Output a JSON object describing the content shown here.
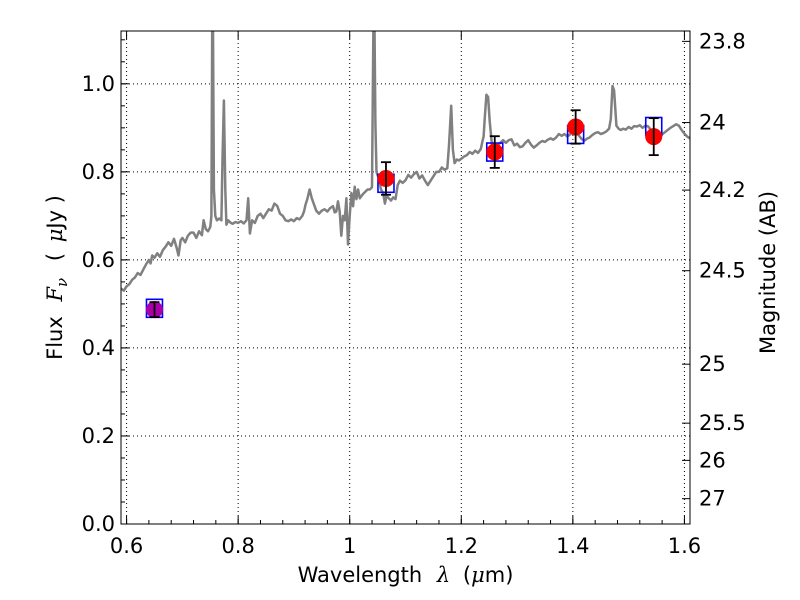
{
  "chart_data": {
    "type": "scatter",
    "xlabel_text": "Wavelength",
    "xlabel_symbol": "λ",
    "xlabel_unit_open": "(",
    "xlabel_unit_mu": "μ",
    "xlabel_unit_rest": "m)",
    "ylabel_text": "Flux",
    "ylabel_symbol_F": "F",
    "ylabel_symbol_nu": "ν",
    "ylabel_unit_open": "(",
    "ylabel_unit_mu": "μ",
    "ylabel_unit_rest": "Jy )",
    "y2label": "Magnitude (AB)",
    "xlim": [
      0.59,
      1.61
    ],
    "ylim": [
      0.0,
      1.12
    ],
    "grid": true,
    "x_ticks": [
      {
        "value": 0.6,
        "label": "0.6"
      },
      {
        "value": 0.8,
        "label": "0.8"
      },
      {
        "value": 1.0,
        "label": "1"
      },
      {
        "value": 1.2,
        "label": "1.2"
      },
      {
        "value": 1.4,
        "label": "1.4"
      },
      {
        "value": 1.6,
        "label": "1.6"
      }
    ],
    "y_ticks": [
      {
        "value": 0.0,
        "label": "0.0"
      },
      {
        "value": 0.2,
        "label": "0.2"
      },
      {
        "value": 0.4,
        "label": "0.4"
      },
      {
        "value": 0.6,
        "label": "0.6"
      },
      {
        "value": 0.8,
        "label": "0.8"
      },
      {
        "value": 1.0,
        "label": "1.0"
      }
    ],
    "y2_ticks": [
      {
        "mag": 23.8,
        "label": "23.8"
      },
      {
        "mag": 24,
        "label": "24"
      },
      {
        "mag": 24.2,
        "label": "24.2"
      },
      {
        "mag": 24.5,
        "label": "24.5"
      },
      {
        "mag": 25,
        "label": "25"
      },
      {
        "mag": 25.5,
        "label": "25.5"
      },
      {
        "mag": 26,
        "label": "26"
      },
      {
        "mag": 27,
        "label": "27"
      }
    ],
    "series": [
      {
        "kind": "model_spectrum",
        "color": "#808080",
        "points": [
          [
            0.59,
            0.535
          ],
          [
            0.595,
            0.53
          ],
          [
            0.6,
            0.54
          ],
          [
            0.605,
            0.545
          ],
          [
            0.61,
            0.555
          ],
          [
            0.615,
            0.56
          ],
          [
            0.62,
            0.57
          ],
          [
            0.625,
            0.566
          ],
          [
            0.63,
            0.578
          ],
          [
            0.635,
            0.59
          ],
          [
            0.64,
            0.6
          ],
          [
            0.643,
            0.592
          ],
          [
            0.646,
            0.61
          ],
          [
            0.65,
            0.605
          ],
          [
            0.655,
            0.615
          ],
          [
            0.66,
            0.607
          ],
          [
            0.665,
            0.622
          ],
          [
            0.67,
            0.63
          ],
          [
            0.675,
            0.64
          ],
          [
            0.68,
            0.632
          ],
          [
            0.685,
            0.648
          ],
          [
            0.69,
            0.626
          ],
          [
            0.693,
            0.61
          ],
          [
            0.697,
            0.645
          ],
          [
            0.7,
            0.65
          ],
          [
            0.705,
            0.64
          ],
          [
            0.71,
            0.655
          ],
          [
            0.715,
            0.662
          ],
          [
            0.72,
            0.662
          ],
          [
            0.725,
            0.65
          ],
          [
            0.73,
            0.665
          ],
          [
            0.735,
            0.656
          ],
          [
            0.738,
            0.69
          ],
          [
            0.742,
            0.67
          ],
          [
            0.746,
            0.665
          ],
          [
            0.75,
            0.675
          ],
          [
            0.752,
            0.7
          ],
          [
            0.7535,
            1.13
          ],
          [
            0.755,
            1.13
          ],
          [
            0.7565,
            0.76
          ],
          [
            0.759,
            0.7
          ],
          [
            0.762,
            0.69
          ],
          [
            0.766,
            0.694
          ],
          [
            0.77,
            0.69
          ],
          [
            0.772,
            0.83
          ],
          [
            0.7745,
            0.962
          ],
          [
            0.777,
            0.76
          ],
          [
            0.779,
            0.68
          ],
          [
            0.782,
            0.69
          ],
          [
            0.786,
            0.685
          ],
          [
            0.79,
            0.682
          ],
          [
            0.795,
            0.686
          ],
          [
            0.8,
            0.684
          ],
          [
            0.805,
            0.688
          ],
          [
            0.81,
            0.683
          ],
          [
            0.815,
            0.69
          ],
          [
            0.818,
            0.74
          ],
          [
            0.821,
            0.66
          ],
          [
            0.825,
            0.69
          ],
          [
            0.83,
            0.684
          ],
          [
            0.835,
            0.7
          ],
          [
            0.84,
            0.705
          ],
          [
            0.845,
            0.695
          ],
          [
            0.85,
            0.705
          ],
          [
            0.855,
            0.715
          ],
          [
            0.86,
            0.712
          ],
          [
            0.865,
            0.728
          ],
          [
            0.87,
            0.723
          ],
          [
            0.875,
            0.705
          ],
          [
            0.88,
            0.7
          ],
          [
            0.885,
            0.69
          ],
          [
            0.89,
            0.688
          ],
          [
            0.895,
            0.692
          ],
          [
            0.9,
            0.688
          ],
          [
            0.905,
            0.695
          ],
          [
            0.91,
            0.692
          ],
          [
            0.915,
            0.7
          ],
          [
            0.918,
            0.71
          ],
          [
            0.921,
            0.726
          ],
          [
            0.924,
            0.738
          ],
          [
            0.928,
            0.76
          ],
          [
            0.932,
            0.74
          ],
          [
            0.936,
            0.726
          ],
          [
            0.94,
            0.712
          ],
          [
            0.945,
            0.705
          ],
          [
            0.95,
            0.712
          ],
          [
            0.955,
            0.715
          ],
          [
            0.96,
            0.71
          ],
          [
            0.965,
            0.718
          ],
          [
            0.97,
            0.722
          ],
          [
            0.973,
            0.708
          ],
          [
            0.976,
            0.71
          ],
          [
            0.979,
            0.733
          ],
          [
            0.982,
            0.71
          ],
          [
            0.985,
            0.655
          ],
          [
            0.988,
            0.7
          ],
          [
            0.991,
            0.69
          ],
          [
            0.994,
            0.74
          ],
          [
            0.997,
            0.635
          ],
          [
            1.0,
            0.7
          ],
          [
            1.003,
            0.752
          ],
          [
            1.006,
            0.722
          ],
          [
            1.009,
            0.766
          ],
          [
            1.012,
            0.738
          ],
          [
            1.015,
            0.76
          ],
          [
            1.018,
            0.74
          ],
          [
            1.021,
            0.745
          ],
          [
            1.024,
            0.75
          ],
          [
            1.028,
            0.755
          ],
          [
            1.032,
            0.76
          ],
          [
            1.036,
            0.76
          ],
          [
            1.04,
            0.765
          ],
          [
            1.0425,
            1.13
          ],
          [
            1.0445,
            1.13
          ],
          [
            1.046,
            0.91
          ],
          [
            1.048,
            0.8
          ],
          [
            1.052,
            0.785
          ],
          [
            1.056,
            0.76
          ],
          [
            1.06,
            0.752
          ],
          [
            1.063,
            0.728
          ],
          [
            1.066,
            0.746
          ],
          [
            1.07,
            0.74
          ],
          [
            1.074,
            0.735
          ],
          [
            1.078,
            0.742
          ],
          [
            1.082,
            0.738
          ],
          [
            1.086,
            0.77
          ],
          [
            1.09,
            0.78
          ],
          [
            1.095,
            0.775
          ],
          [
            1.1,
            0.781
          ],
          [
            1.105,
            0.793
          ],
          [
            1.11,
            0.787
          ],
          [
            1.115,
            0.795
          ],
          [
            1.12,
            0.8
          ],
          [
            1.125,
            0.785
          ],
          [
            1.13,
            0.792
          ],
          [
            1.135,
            0.78
          ],
          [
            1.14,
            0.77
          ],
          [
            1.145,
            0.78
          ],
          [
            1.15,
            0.79
          ],
          [
            1.155,
            0.8
          ],
          [
            1.16,
            0.8
          ],
          [
            1.165,
            0.81
          ],
          [
            1.17,
            0.805
          ],
          [
            1.175,
            0.808
          ],
          [
            1.178,
            0.86
          ],
          [
            1.182,
            0.95
          ],
          [
            1.185,
            0.85
          ],
          [
            1.188,
            0.82
          ],
          [
            1.192,
            0.828
          ],
          [
            1.196,
            0.826
          ],
          [
            1.2,
            0.83
          ],
          [
            1.205,
            0.835
          ],
          [
            1.21,
            0.838
          ],
          [
            1.215,
            0.845
          ],
          [
            1.22,
            0.841
          ],
          [
            1.225,
            0.848
          ],
          [
            1.23,
            0.843
          ],
          [
            1.235,
            0.852
          ],
          [
            1.238,
            0.87
          ],
          [
            1.24,
            0.88
          ],
          [
            1.242,
            0.92
          ],
          [
            1.245,
            0.975
          ],
          [
            1.248,
            0.97
          ],
          [
            1.251,
            0.915
          ],
          [
            1.255,
            0.86
          ],
          [
            1.26,
            0.856
          ],
          [
            1.265,
            0.86
          ],
          [
            1.27,
            0.866
          ],
          [
            1.275,
            0.872
          ],
          [
            1.28,
            0.866
          ],
          [
            1.285,
            0.872
          ],
          [
            1.29,
            0.874
          ],
          [
            1.295,
            0.86
          ],
          [
            1.3,
            0.864
          ],
          [
            1.305,
            0.856
          ],
          [
            1.31,
            0.858
          ],
          [
            1.315,
            0.866
          ],
          [
            1.32,
            0.872
          ],
          [
            1.325,
            0.862
          ],
          [
            1.33,
            0.855
          ],
          [
            1.335,
            0.86
          ],
          [
            1.34,
            0.866
          ],
          [
            1.345,
            0.87
          ],
          [
            1.35,
            0.868
          ],
          [
            1.355,
            0.873
          ],
          [
            1.36,
            0.876
          ],
          [
            1.365,
            0.873
          ],
          [
            1.37,
            0.878
          ],
          [
            1.375,
            0.886
          ],
          [
            1.38,
            0.882
          ],
          [
            1.385,
            0.886
          ],
          [
            1.39,
            0.88
          ],
          [
            1.395,
            0.885
          ],
          [
            1.4,
            0.893
          ],
          [
            1.405,
            0.888
          ],
          [
            1.41,
            0.884
          ],
          [
            1.415,
            0.876
          ],
          [
            1.42,
            0.87
          ],
          [
            1.425,
            0.875
          ],
          [
            1.43,
            0.878
          ],
          [
            1.435,
            0.884
          ],
          [
            1.44,
            0.888
          ],
          [
            1.445,
            0.89
          ],
          [
            1.45,
            0.886
          ],
          [
            1.455,
            0.888
          ],
          [
            1.46,
            0.892
          ],
          [
            1.465,
            0.898
          ],
          [
            1.468,
            0.92
          ],
          [
            1.471,
            0.995
          ],
          [
            1.474,
            0.985
          ],
          [
            1.478,
            0.905
          ],
          [
            1.482,
            0.898
          ],
          [
            1.486,
            0.895
          ],
          [
            1.49,
            0.898
          ],
          [
            1.495,
            0.896
          ],
          [
            1.5,
            0.902
          ],
          [
            1.505,
            0.898
          ],
          [
            1.51,
            0.904
          ],
          [
            1.515,
            0.903
          ],
          [
            1.52,
            0.906
          ],
          [
            1.525,
            0.9
          ],
          [
            1.53,
            0.905
          ],
          [
            1.535,
            0.903
          ],
          [
            1.54,
            0.895
          ],
          [
            1.545,
            0.89
          ],
          [
            1.55,
            0.884
          ],
          [
            1.555,
            0.88
          ],
          [
            1.56,
            0.885
          ],
          [
            1.565,
            0.89
          ],
          [
            1.57,
            0.895
          ],
          [
            1.575,
            0.9
          ],
          [
            1.58,
            0.904
          ],
          [
            1.585,
            0.908
          ],
          [
            1.59,
            0.905
          ],
          [
            1.595,
            0.895
          ],
          [
            1.6,
            0.887
          ],
          [
            1.605,
            0.88
          ],
          [
            1.61,
            0.876
          ]
        ]
      },
      {
        "kind": "observed_photometry",
        "color": "#ff0000",
        "marker": "circle",
        "points": [
          {
            "x": 1.065,
            "y": 0.785,
            "err": 0.037
          },
          {
            "x": 1.26,
            "y": 0.845,
            "err": 0.036
          },
          {
            "x": 1.405,
            "y": 0.902,
            "err": 0.038
          },
          {
            "x": 1.545,
            "y": 0.88,
            "err": 0.042
          }
        ]
      },
      {
        "kind": "observed_photometry_blue_band",
        "color": "#aa00aa",
        "marker": "circle",
        "points": [
          {
            "x": 0.65,
            "y": 0.487,
            "err": 0.017
          }
        ]
      },
      {
        "kind": "model_photometry",
        "color": "#0000ff",
        "marker": "square-open",
        "points": [
          {
            "x": 0.65,
            "y": 0.49
          },
          {
            "x": 1.065,
            "y": 0.774
          },
          {
            "x": 1.26,
            "y": 0.845
          },
          {
            "x": 1.405,
            "y": 0.885
          },
          {
            "x": 1.545,
            "y": 0.903
          }
        ]
      }
    ]
  }
}
